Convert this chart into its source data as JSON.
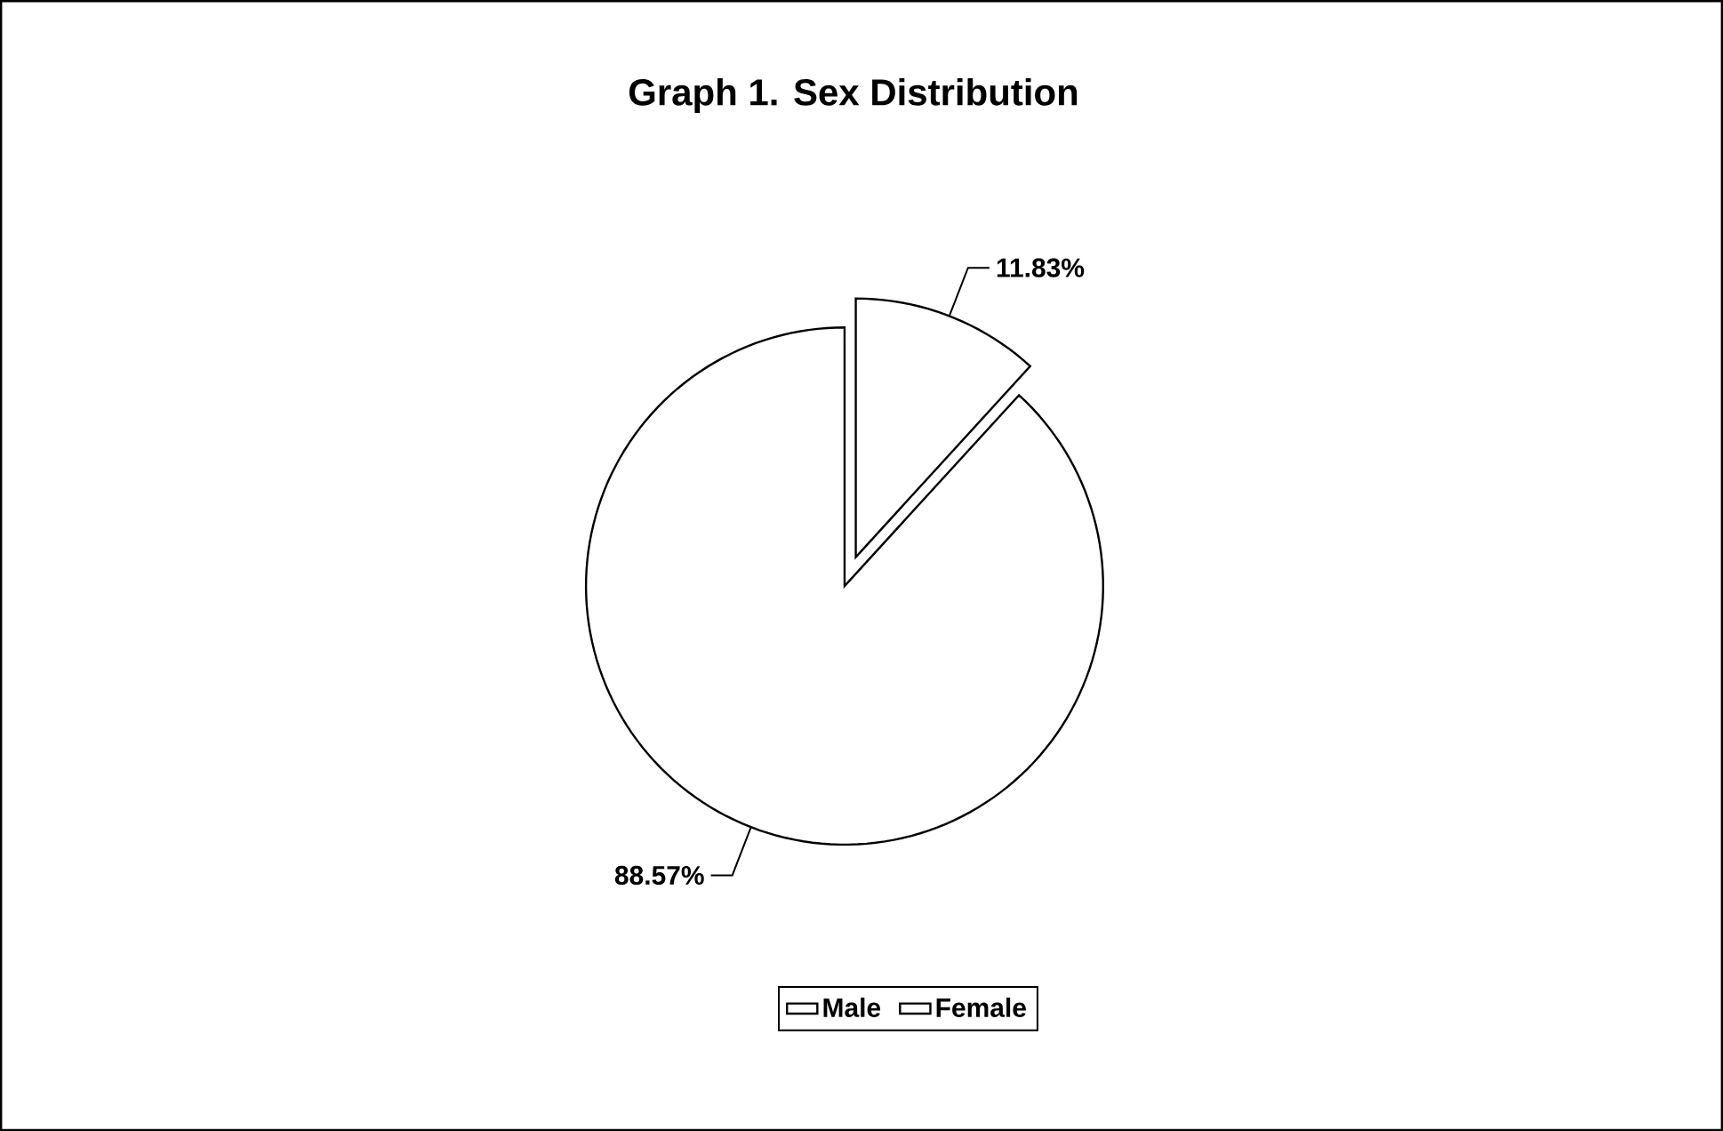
{
  "chart_data": {
    "type": "pie",
    "title": "Graph 1. Sex Distribution",
    "categories": [
      "Male",
      "Female"
    ],
    "values": [
      11.83,
      88.57
    ],
    "colors": [
      "#ffffff",
      "#ffffff"
    ],
    "value_labels": [
      "11.83%",
      "88.57%"
    ],
    "legend": "bottom"
  }
}
